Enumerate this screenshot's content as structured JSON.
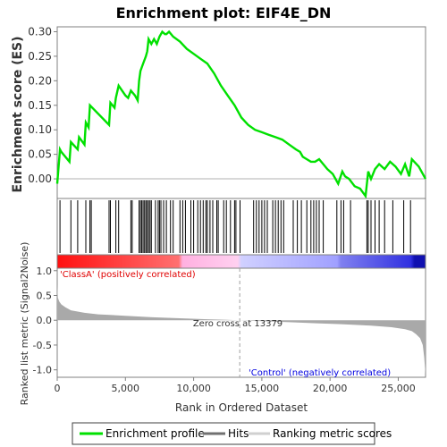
{
  "title": "Enrichment plot: EIF4E_DN",
  "colors": {
    "enrichment_line": "#00e000",
    "hit_line": "#000000",
    "metric_fill": "#a9a9a9",
    "zero_cross_line": "#a0a0a0",
    "class_a_text": "#e00000",
    "control_text": "#0000e0",
    "bar_red": "#ff2020",
    "bar_pink": "#ffb0e0",
    "bar_lavender": "#b0b0ff",
    "bar_blue": "#2020e0"
  },
  "chart_data": [
    {
      "type": "line",
      "name": "enrichment-score-panel",
      "ylabel": "Enrichment score (ES)",
      "ylim": [
        -0.04,
        0.31
      ],
      "xlim": [
        0,
        27000
      ],
      "yticks": [
        "0.00",
        "0.05",
        "0.10",
        "0.15",
        "0.20",
        "0.25",
        "0.30"
      ],
      "series": [
        {
          "name": "Enrichment profile",
          "x": [
            0,
            200,
            300,
            900,
            1000,
            1500,
            1600,
            2000,
            2100,
            2300,
            2400,
            3800,
            3900,
            4200,
            4300,
            4500,
            5000,
            5200,
            5400,
            5700,
            5900,
            6000,
            6100,
            6300,
            6500,
            6600,
            6700,
            6900,
            7100,
            7300,
            7500,
            7700,
            7900,
            8000,
            8200,
            8500,
            9000,
            9500,
            10000,
            10500,
            11000,
            11500,
            12000,
            12500,
            13000,
            13500,
            14000,
            14500,
            15000,
            15500,
            16000,
            16500,
            17000,
            17500,
            17800,
            18000,
            18300,
            18600,
            18900,
            19200,
            19500,
            19800,
            20200,
            20600,
            20900,
            21100,
            21400,
            21800,
            22200,
            22600,
            22800,
            23000,
            23300,
            23600,
            24000,
            24400,
            24800,
            25200,
            25500,
            25800,
            26000,
            26500,
            27000
          ],
          "y": [
            -0.01,
            0.06,
            0.055,
            0.035,
            0.075,
            0.06,
            0.085,
            0.07,
            0.115,
            0.105,
            0.15,
            0.11,
            0.155,
            0.145,
            0.165,
            0.19,
            0.17,
            0.165,
            0.18,
            0.17,
            0.16,
            0.2,
            0.22,
            0.235,
            0.25,
            0.26,
            0.285,
            0.275,
            0.285,
            0.275,
            0.29,
            0.3,
            0.295,
            0.295,
            0.3,
            0.29,
            0.28,
            0.265,
            0.255,
            0.245,
            0.235,
            0.215,
            0.19,
            0.17,
            0.15,
            0.125,
            0.11,
            0.1,
            0.095,
            0.09,
            0.085,
            0.08,
            0.07,
            0.06,
            0.055,
            0.045,
            0.04,
            0.035,
            0.035,
            0.04,
            0.03,
            0.02,
            0.01,
            -0.01,
            0.015,
            0.005,
            0.0,
            -0.015,
            -0.02,
            -0.035,
            0.015,
            0.0,
            0.02,
            0.03,
            0.02,
            0.035,
            0.025,
            0.01,
            0.03,
            0.005,
            0.04,
            0.025,
            0.0
          ]
        }
      ]
    },
    {
      "type": "scatter",
      "name": "hits-panel",
      "series": [
        {
          "name": "Hits",
          "x": [
            200,
            1000,
            1500,
            2100,
            2400,
            2500,
            3800,
            3900,
            4300,
            4500,
            5400,
            5500,
            6000,
            6100,
            6200,
            6300,
            6400,
            6500,
            6600,
            6700,
            6800,
            6900,
            7200,
            7400,
            7500,
            7600,
            7800,
            8000,
            8300,
            8500,
            9000,
            9200,
            9400,
            9800,
            10000,
            10300,
            10500,
            10700,
            10900,
            11000,
            11200,
            11400,
            11700,
            11800,
            12200,
            12400,
            12700,
            13000,
            13100,
            13400,
            14400,
            14600,
            14800,
            15000,
            15200,
            15400,
            15800,
            16000,
            16200,
            16400,
            16600,
            17300,
            17600,
            17900,
            18300,
            18600,
            18800,
            19000,
            19200,
            19500,
            20500,
            20800,
            21000,
            21500,
            22700,
            22800,
            23000,
            23300,
            23600,
            24000,
            24600,
            25400,
            25900
          ]
        }
      ]
    },
    {
      "type": "area",
      "name": "ranked-metric-panel",
      "ylabel": "Ranked list metric (Signal2Noise)",
      "xlabel": "Rank in Ordered Dataset",
      "ylim": [
        -1.15,
        1.05
      ],
      "xlim": [
        0,
        27000
      ],
      "yticks": [
        "1.0",
        "0.5",
        "0.0",
        "-0.5",
        "-1.0"
      ],
      "xticks": [
        "0",
        "5,000",
        "10,000",
        "15,000",
        "20,000",
        "25,000"
      ],
      "x_tick_values": [
        0,
        5000,
        10000,
        15000,
        20000,
        25000
      ],
      "series": [
        {
          "name": "Ranking metric scores",
          "x": [
            0,
            50,
            150,
            300,
            600,
            1000,
            2000,
            3000,
            5000,
            7000,
            9000,
            11000,
            13379,
            15000,
            17000,
            19000,
            21000,
            23000,
            24500,
            25500,
            26000,
            26300,
            26600,
            26800,
            26900,
            27000
          ],
          "y": [
            0.72,
            0.45,
            0.38,
            0.32,
            0.26,
            0.2,
            0.15,
            0.12,
            0.09,
            0.06,
            0.04,
            0.02,
            0.0,
            -0.02,
            -0.04,
            -0.06,
            -0.08,
            -0.11,
            -0.14,
            -0.18,
            -0.22,
            -0.28,
            -0.36,
            -0.5,
            -0.75,
            -1.1
          ]
        }
      ],
      "annotations": {
        "zero_cross": "Zero cross at 13379",
        "zero_cross_value": 13379,
        "positive_label": "'ClassA' (positively correlated)",
        "negative_label": "'Control' (negatively correlated)"
      }
    }
  ],
  "legend": {
    "placement": "bottom",
    "items": [
      {
        "label": "Enrichment profile"
      },
      {
        "label": "Hits"
      },
      {
        "label": "Ranking metric scores"
      }
    ]
  }
}
